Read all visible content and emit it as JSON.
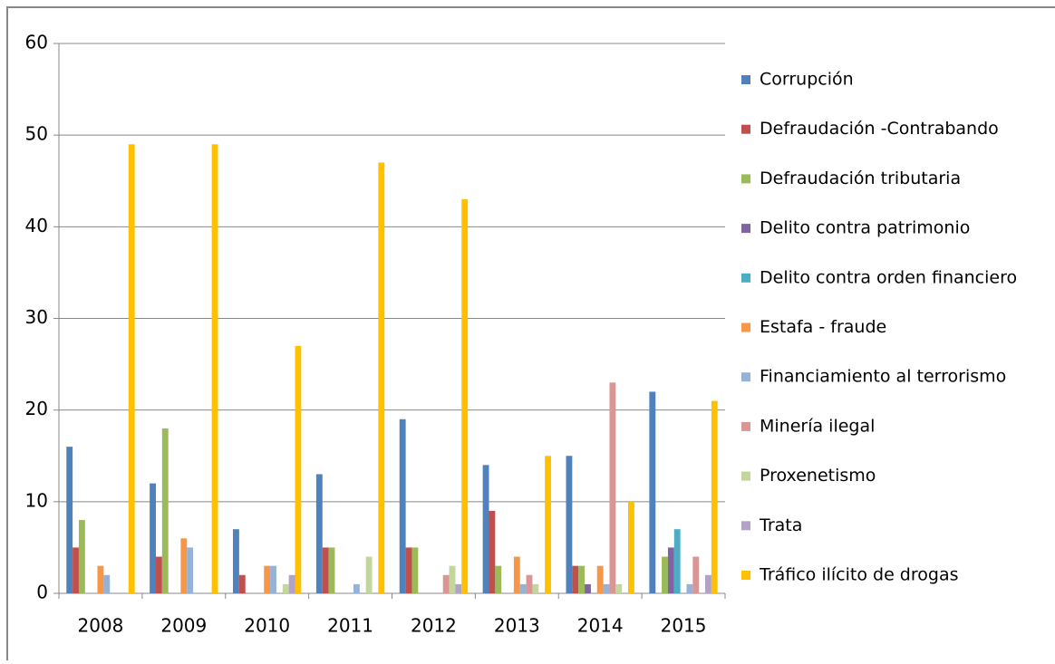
{
  "chart_data": {
    "type": "bar",
    "categories": [
      "2008",
      "2009",
      "2010",
      "2011",
      "2012",
      "2013",
      "2014",
      "2015"
    ],
    "series": [
      {
        "name": "Corrupción",
        "color": "#4F81BD",
        "values": [
          16,
          12,
          7,
          13,
          19,
          14,
          15,
          22
        ]
      },
      {
        "name": "Defraudación -Contrabando",
        "color": "#C0504D",
        "values": [
          5,
          4,
          2,
          5,
          5,
          9,
          3,
          0
        ]
      },
      {
        "name": "Defraudación tributaria",
        "color": "#9BBB59",
        "values": [
          8,
          18,
          0,
          5,
          5,
          3,
          3,
          4
        ]
      },
      {
        "name": "Delito contra patrimonio",
        "color": "#8064A2",
        "values": [
          0,
          0,
          0,
          0,
          0,
          0,
          1,
          5
        ]
      },
      {
        "name": "Delito contra orden financiero",
        "color": "#4BACC6",
        "values": [
          0,
          0,
          0,
          0,
          0,
          0,
          0,
          7
        ]
      },
      {
        "name": "Estafa - fraude",
        "color": "#F79646",
        "values": [
          3,
          6,
          3,
          0,
          0,
          4,
          3,
          0
        ]
      },
      {
        "name": "Financiamiento al terrorismo",
        "color": "#95B3D7",
        "values": [
          2,
          5,
          3,
          1,
          0,
          1,
          1,
          1
        ]
      },
      {
        "name": "Minería ilegal",
        "color": "#D99694",
        "values": [
          0,
          0,
          0,
          0,
          2,
          2,
          23,
          4
        ]
      },
      {
        "name": "Proxenetismo",
        "color": "#C3D69B",
        "values": [
          0,
          0,
          1,
          4,
          3,
          1,
          1,
          0
        ]
      },
      {
        "name": "Trata",
        "color": "#B3A2C7",
        "values": [
          0,
          0,
          2,
          0,
          1,
          0,
          0,
          2
        ]
      },
      {
        "name": "Tráfico ilícito de drogas",
        "color": "#FFC000",
        "values": [
          49,
          49,
          27,
          47,
          43,
          15,
          10,
          21
        ]
      }
    ],
    "ylim": [
      0,
      60
    ],
    "yticks": [
      0,
      10,
      20,
      30,
      40,
      50,
      60
    ],
    "grid": true,
    "legend": "right"
  }
}
